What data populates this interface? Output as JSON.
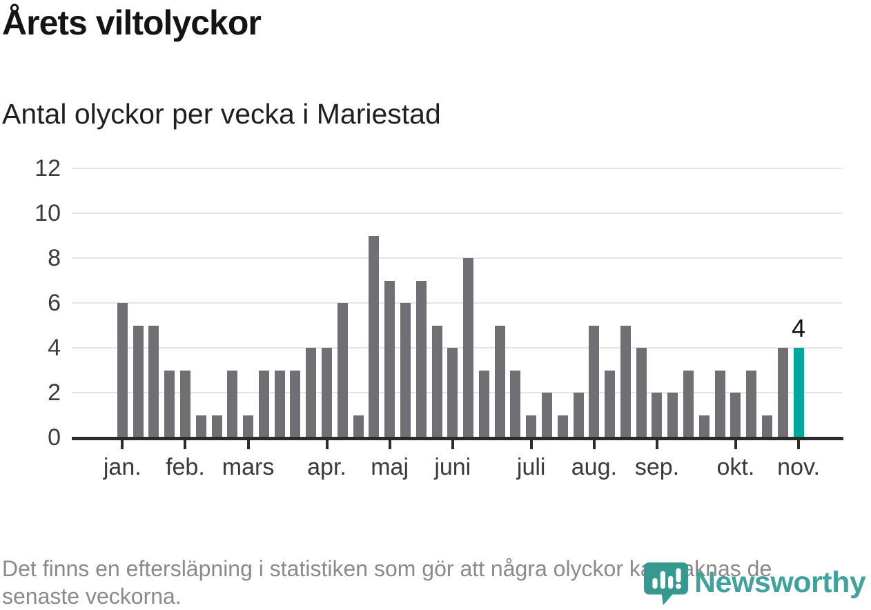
{
  "header": {
    "title": "Årets viltolyckor",
    "subtitle": "Antal olyckor per vecka i Mariestad"
  },
  "chart_data": {
    "type": "bar",
    "title": "Årets viltolyckor",
    "subtitle": "Antal olyckor per vecka i Mariestad",
    "x_unit": "vecka",
    "values": [
      6,
      5,
      5,
      3,
      3,
      1,
      1,
      3,
      1,
      3,
      3,
      3,
      4,
      4,
      6,
      1,
      9,
      7,
      6,
      7,
      5,
      4,
      8,
      3,
      5,
      3,
      1,
      2,
      1,
      2,
      5,
      3,
      5,
      4,
      2,
      2,
      3,
      1,
      3,
      2,
      3,
      1,
      4,
      4
    ],
    "month_ticks": [
      {
        "label": "jan.",
        "bar_index": 0
      },
      {
        "label": "feb.",
        "bar_index": 4
      },
      {
        "label": "mars",
        "bar_index": 8
      },
      {
        "label": "apr.",
        "bar_index": 13
      },
      {
        "label": "maj",
        "bar_index": 17
      },
      {
        "label": "juni",
        "bar_index": 21
      },
      {
        "label": "juli",
        "bar_index": 26
      },
      {
        "label": "aug.",
        "bar_index": 30
      },
      {
        "label": "sep.",
        "bar_index": 34
      },
      {
        "label": "okt.",
        "bar_index": 39
      },
      {
        "label": "nov.",
        "bar_index": 43
      }
    ],
    "y_ticks": [
      0,
      2,
      4,
      6,
      8,
      10,
      12
    ],
    "ylim": [
      0,
      12
    ],
    "grid": "horizontal",
    "legend": "none",
    "highlight_last_bar": true,
    "last_bar_label": "4",
    "bar_color": "#6f6f74",
    "highlight_color": "#00a79b"
  },
  "footer": {
    "lines": [
      "Det finns en eftersläpning i statistiken som gör att några olyckor kan saknas de",
      "senaste veckorna."
    ]
  },
  "logo": {
    "text": "Newsworthy",
    "text_color": "#3fa39b",
    "icon_color": "#35998f",
    "icon": "newsworthy-speech-bubble-bars-icon"
  }
}
